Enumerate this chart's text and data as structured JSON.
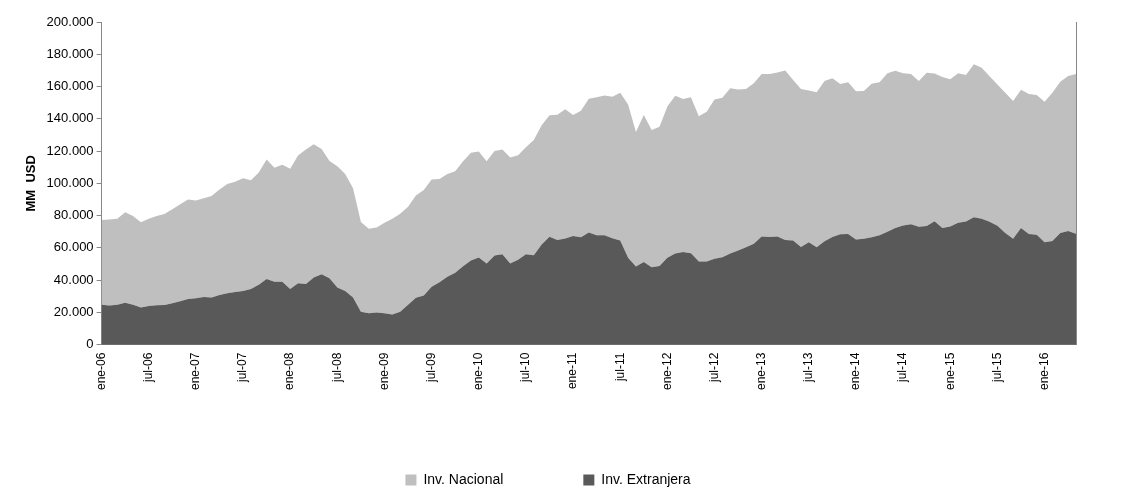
{
  "chart_data": {
    "type": "area",
    "stacked": true,
    "ylabel": "MM  USD",
    "legend": "bottom",
    "grid": false,
    "categories": [
      "ene-06",
      null,
      null,
      null,
      null,
      null,
      "jul-06",
      null,
      null,
      null,
      null,
      null,
      "ene-07",
      null,
      null,
      null,
      null,
      null,
      "jul-07",
      null,
      null,
      null,
      null,
      null,
      "ene-08",
      null,
      null,
      null,
      null,
      null,
      "jul-08",
      null,
      null,
      null,
      null,
      null,
      "ene-09",
      null,
      null,
      null,
      null,
      null,
      "jul-09",
      null,
      null,
      null,
      null,
      null,
      "ene-10",
      null,
      null,
      null,
      null,
      null,
      "jul-10",
      null,
      null,
      null,
      null,
      null,
      "ene-11",
      null,
      null,
      null,
      null,
      null,
      "jul-11",
      null,
      null,
      null,
      null,
      null,
      "ene-12",
      null,
      null,
      null,
      null,
      null,
      "jul-12",
      null,
      null,
      null,
      null,
      null,
      "ene-13",
      null,
      null,
      null,
      null,
      null,
      "jul-13",
      null,
      null,
      null,
      null,
      null,
      "ene-14",
      null,
      null,
      null,
      null,
      null,
      "jul-14",
      null,
      null,
      null,
      null,
      null,
      "ene-15",
      null,
      null,
      null,
      null,
      null,
      "jul-15",
      null,
      null,
      null,
      null,
      null,
      "ene-16",
      null,
      null,
      null,
      null
    ],
    "ylim": [
      0,
      200000
    ],
    "yticks": [
      {
        "value": 0,
        "label": "0"
      },
      {
        "value": 20000,
        "label": "20.000"
      },
      {
        "value": 40000,
        "label": "40.000"
      },
      {
        "value": 60000,
        "label": "60.000"
      },
      {
        "value": 80000,
        "label": "80.000"
      },
      {
        "value": 100000,
        "label": "100.000"
      },
      {
        "value": 120000,
        "label": "120.000"
      },
      {
        "value": 140000,
        "label": "140.000"
      },
      {
        "value": 160000,
        "label": "160.000"
      },
      {
        "value": 180000,
        "label": "180.000"
      },
      {
        "value": 200000,
        "label": "200.000"
      }
    ],
    "series": [
      {
        "name": "Inv. Extranjera",
        "color": "#595959",
        "values": [
          24800,
          24300,
          24800,
          26000,
          24800,
          23000,
          23900,
          24400,
          24600,
          25700,
          26900,
          28300,
          28700,
          29600,
          29200,
          30700,
          31900,
          32600,
          33300,
          34500,
          37200,
          40700,
          39000,
          39000,
          34500,
          38100,
          37600,
          41600,
          43700,
          41100,
          35400,
          33300,
          29200,
          20400,
          19500,
          19900,
          19400,
          18700,
          20400,
          24700,
          29100,
          30500,
          35900,
          38600,
          42100,
          44500,
          48600,
          52100,
          54000,
          50300,
          55300,
          56100,
          50300,
          52600,
          56000,
          55400,
          62100,
          66900,
          64900,
          65800,
          67400,
          66500,
          69500,
          67800,
          67800,
          66000,
          64600,
          53900,
          48400,
          51200,
          48000,
          48800,
          53900,
          56500,
          57400,
          56700,
          51600,
          51600,
          53300,
          54200,
          56500,
          58400,
          60400,
          62600,
          67000,
          66700,
          67000,
          64800,
          64600,
          60500,
          63500,
          60400,
          64100,
          66700,
          68500,
          68600,
          65100,
          65600,
          66500,
          67800,
          70000,
          72300,
          73900,
          74600,
          73000,
          73600,
          76500,
          72300,
          73200,
          75500,
          76400,
          79000,
          78100,
          76200,
          73700,
          69200,
          65600,
          72300,
          68600,
          68100,
          63400,
          64200,
          69200,
          70400,
          68800
        ]
      },
      {
        "name": "Inv. Nacional",
        "color": "#bfbfbf",
        "values": [
          52400,
          53200,
          53200,
          56000,
          55000,
          52800,
          54100,
          55400,
          56400,
          58300,
          60100,
          61700,
          60700,
          61200,
          63000,
          65400,
          67600,
          68300,
          69900,
          67400,
          69500,
          74000,
          70700,
          72500,
          74500,
          79200,
          83300,
          82600,
          77500,
          72700,
          75200,
          72500,
          67800,
          55600,
          52400,
          52700,
          56100,
          59400,
          60700,
          60800,
          63300,
          65400,
          66500,
          64000,
          63600,
          63000,
          65100,
          66800,
          65800,
          63400,
          64700,
          64900,
          65700,
          64800,
          66300,
          71500,
          73900,
          75300,
          77600,
          80100,
          74900,
          78500,
          83000,
          85600,
          86700,
          87600,
          91500,
          94900,
          83400,
          91100,
          85000,
          86300,
          93700,
          97800,
          94800,
          96700,
          89900,
          92700,
          98700,
          98900,
          102400,
          99800,
          98100,
          99400,
          100700,
          101100,
          101700,
          105200,
          99500,
          98000,
          94100,
          96000,
          99300,
          98500,
          93000,
          94100,
          92000,
          91700,
          95200,
          94800,
          98200,
          97500,
          94300,
          93100,
          90400,
          94900,
          91500,
          93600,
          91300,
          92700,
          90700,
          94800,
          93600,
          90200,
          87500,
          86900,
          85400,
          85700,
          86800,
          86600,
          87200,
          92000,
          93700,
          96200,
          98900
        ]
      }
    ]
  }
}
